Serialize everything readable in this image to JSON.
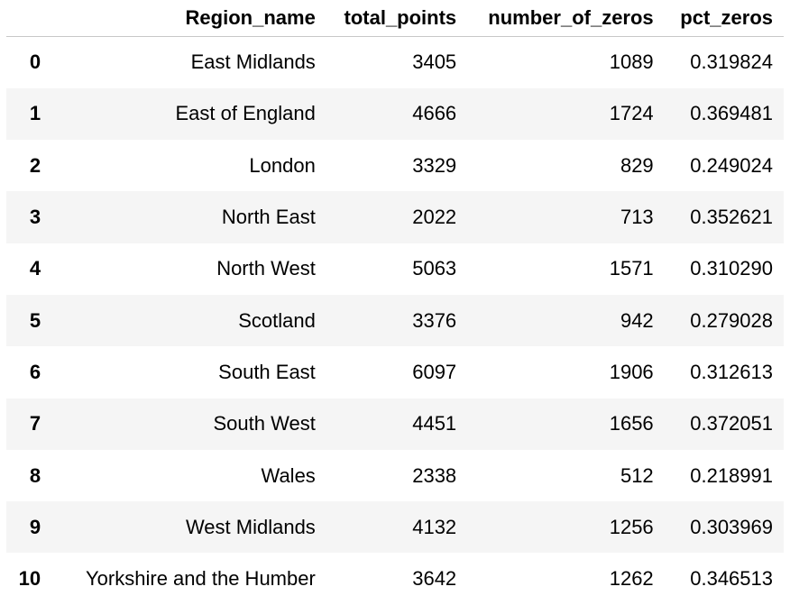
{
  "table": {
    "columns": [
      "",
      "Region_name",
      "total_points",
      "number_of_zeros",
      "pct_zeros"
    ],
    "rows": [
      {
        "index": "0",
        "Region_name": "East Midlands",
        "total_points": "3405",
        "number_of_zeros": "1089",
        "pct_zeros": "0.319824"
      },
      {
        "index": "1",
        "Region_name": "East of England",
        "total_points": "4666",
        "number_of_zeros": "1724",
        "pct_zeros": "0.369481"
      },
      {
        "index": "2",
        "Region_name": "London",
        "total_points": "3329",
        "number_of_zeros": "829",
        "pct_zeros": "0.249024"
      },
      {
        "index": "3",
        "Region_name": "North East",
        "total_points": "2022",
        "number_of_zeros": "713",
        "pct_zeros": "0.352621"
      },
      {
        "index": "4",
        "Region_name": "North West",
        "total_points": "5063",
        "number_of_zeros": "1571",
        "pct_zeros": "0.310290"
      },
      {
        "index": "5",
        "Region_name": "Scotland",
        "total_points": "3376",
        "number_of_zeros": "942",
        "pct_zeros": "0.279028"
      },
      {
        "index": "6",
        "Region_name": "South East",
        "total_points": "6097",
        "number_of_zeros": "1906",
        "pct_zeros": "0.312613"
      },
      {
        "index": "7",
        "Region_name": "South West",
        "total_points": "4451",
        "number_of_zeros": "1656",
        "pct_zeros": "0.372051"
      },
      {
        "index": "8",
        "Region_name": "Wales",
        "total_points": "2338",
        "number_of_zeros": "512",
        "pct_zeros": "0.218991"
      },
      {
        "index": "9",
        "Region_name": "West Midlands",
        "total_points": "4132",
        "number_of_zeros": "1256",
        "pct_zeros": "0.303969"
      },
      {
        "index": "10",
        "Region_name": "Yorkshire and the Humber",
        "total_points": "3642",
        "number_of_zeros": "1262",
        "pct_zeros": "0.346513"
      }
    ]
  }
}
